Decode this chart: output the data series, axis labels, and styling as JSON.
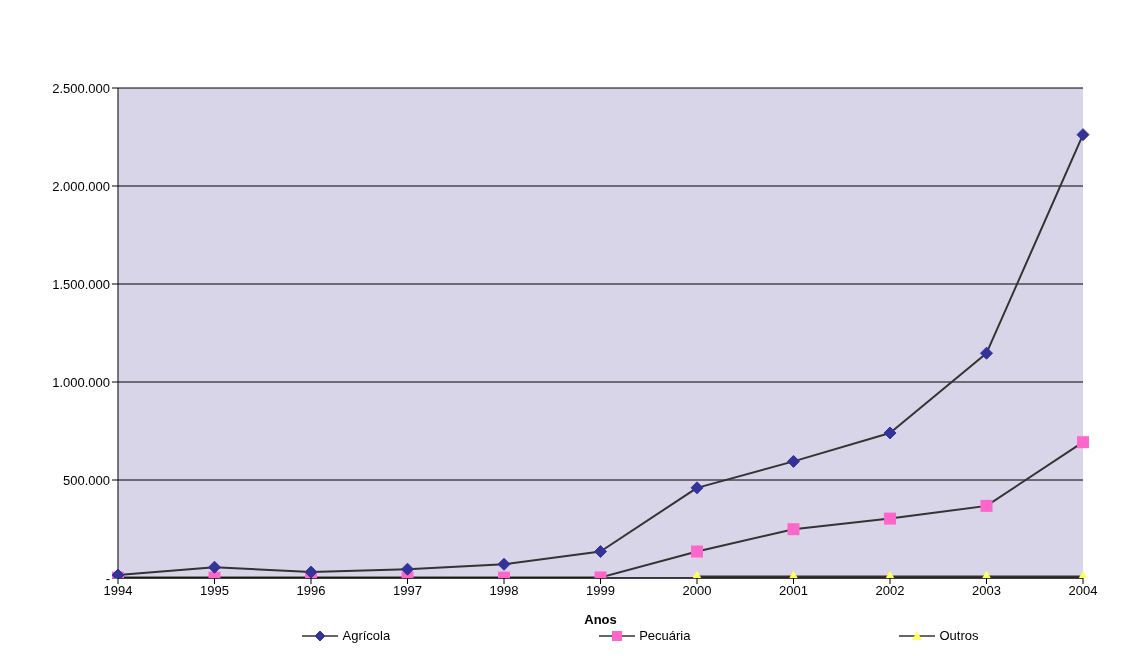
{
  "chart_data": {
    "type": "line",
    "xlabel": "Anos",
    "categories": [
      "1994",
      "1995",
      "1996",
      "1997",
      "1998",
      "1999",
      "2000",
      "2001",
      "2002",
      "2003",
      "2004"
    ],
    "series": [
      {
        "name": "Agrícola",
        "color": "#333399",
        "marker": "diamond",
        "values": [
          15000,
          55000,
          30000,
          45000,
          70000,
          135000,
          460000,
          595000,
          740000,
          1147000,
          2262000
        ]
      },
      {
        "name": "Pecuária",
        "color": "#ff66cc",
        "marker": "square",
        "values": [
          2000,
          2000,
          2000,
          2000,
          2000,
          3000,
          135000,
          249000,
          303000,
          368000,
          693000
        ]
      },
      {
        "name": "Outros",
        "color": "#ffff66",
        "marker": "triangle",
        "values": [
          null,
          null,
          null,
          null,
          null,
          null,
          8000,
          8000,
          8000,
          8000,
          8000
        ]
      }
    ],
    "ylim": [
      0,
      2500000
    ],
    "yticks": [
      {
        "value": 0,
        "label": "-"
      },
      {
        "value": 500000,
        "label": "500.000"
      },
      {
        "value": 1000000,
        "label": "1.000.000"
      },
      {
        "value": 1500000,
        "label": "1.500.000"
      },
      {
        "value": 2000000,
        "label": "2.000.000"
      },
      {
        "value": 2500000,
        "label": "2.500.000"
      }
    ],
    "grid": "y",
    "legend": "bottom"
  }
}
